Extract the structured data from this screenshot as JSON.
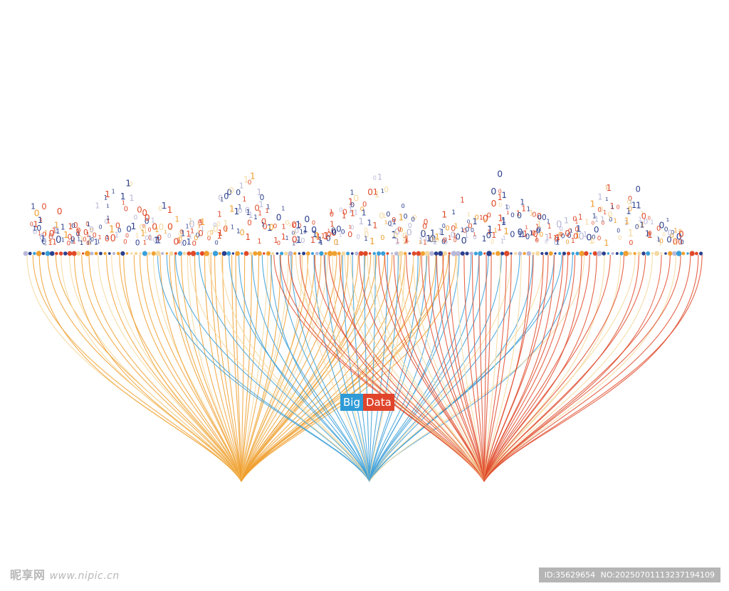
{
  "badge": {
    "word1": "Big",
    "word2": "Data",
    "color1": "#2f9bd6",
    "color2": "#e0452b"
  },
  "palette": {
    "orange": "#f0a030",
    "blue": "#3a9fd8",
    "red": "#e04a2a",
    "cream": "#f5d9a0",
    "navy": "#2b3f8c",
    "lavender": "#b8b8d8"
  },
  "binary_digits": [
    "0",
    "1"
  ],
  "watermark": {
    "site_cn": "昵享网",
    "site_url": "www.nipic.cn",
    "id_label": "ID:35629654",
    "no_label": "NO:20250701113237194109"
  }
}
